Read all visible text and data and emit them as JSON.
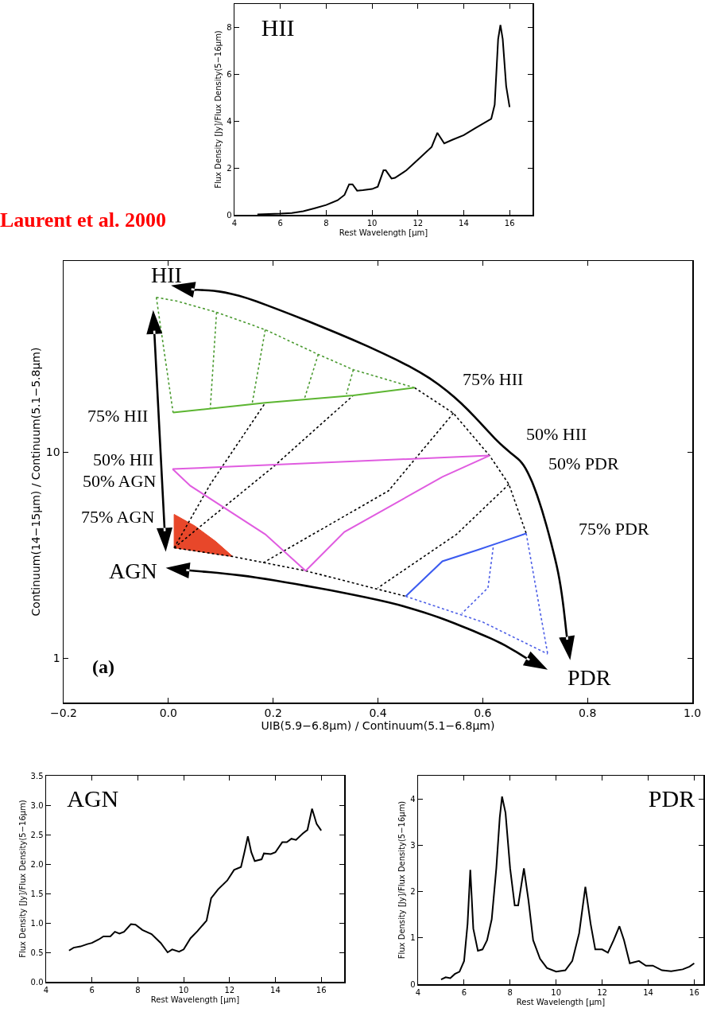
{
  "chart_data": [
    {
      "type": "line",
      "title": "HII",
      "xlabel": "Rest Wavelength [µm]",
      "ylabel": "Flux Density [Jy]/Flux Density(5−16µm)",
      "color": "#000000",
      "xlim": [
        4,
        17
      ],
      "ylim": [
        0,
        9
      ],
      "xticks": [
        4,
        6,
        8,
        10,
        12,
        14,
        16
      ],
      "yticks": [
        0,
        2,
        4,
        6,
        8
      ],
      "x": [
        5,
        6,
        6.5,
        7,
        7.5,
        8,
        8.5,
        8.8,
        9.0,
        9.15,
        9.35,
        9.6,
        10,
        10.25,
        10.5,
        10.6,
        10.85,
        11,
        11.5,
        12,
        12.6,
        12.85,
        13.15,
        13.5,
        14,
        14.5,
        15.2,
        15.35,
        15.5,
        15.6,
        15.7,
        15.85,
        16.0
      ],
      "values": [
        0.02,
        0.05,
        0.08,
        0.15,
        0.28,
        0.42,
        0.62,
        0.85,
        1.3,
        1.3,
        1.03,
        1.05,
        1.1,
        1.2,
        1.9,
        1.9,
        1.55,
        1.58,
        1.9,
        2.35,
        2.9,
        3.5,
        3.05,
        3.2,
        3.4,
        3.7,
        4.1,
        4.7,
        7.5,
        8.1,
        7.5,
        5.5,
        4.6
      ]
    },
    {
      "type": "line",
      "xlabel": "UIB(5.9−6.8µm) / Continuum(5.1−6.8µm)",
      "ylabel": "Continuum(14−15µm) / Continuum(5.1−5.8µm)",
      "log": "y",
      "xlim": [
        -0.2,
        1.0
      ],
      "ylim": [
        0.61,
        85
      ],
      "xticks": [
        {
          "value": -0.2,
          "label": "−0.2"
        },
        {
          "value": 0,
          "label": "0.0"
        },
        0.2,
        0.4,
        0.6,
        0.8,
        {
          "value": 1,
          "label": "1.0"
        }
      ],
      "yticks": [
        1,
        10
      ],
      "annotations": [
        "Laurent et al. 2000",
        "HII",
        "AGN",
        "PDR",
        "75% HII",
        "50% HII",
        "50% AGN",
        "75% AGN",
        "75% HII",
        "50% HII",
        "50% PDR",
        "75% PDR",
        "(a)"
      ],
      "series": [
        {
          "type": "area",
          "color": "#e8472a",
          "x": [
            0.011,
            0.05,
            0.09,
            0.123,
            0.011,
            0.011
          ],
          "values": [
            5.0,
            4.4,
            3.7,
            3.12,
            3.44,
            5.0
          ]
        },
        {
          "line_style": "dotted",
          "color": "#4a9a30",
          "x": [
            -0.023,
            0.009
          ],
          "values": [
            56.6,
            15.6
          ]
        },
        {
          "line_style": "dotted",
          "color": "#4a9a30",
          "x": [
            0.092,
            0.08
          ],
          "values": [
            47.9,
            16.4
          ]
        },
        {
          "line_style": "dotted",
          "color": "#4a9a30",
          "x": [
            0.185,
            0.16
          ],
          "values": [
            39.4,
            17.3
          ]
        },
        {
          "line_style": "dotted",
          "color": "#4a9a30",
          "x": [
            0.286,
            0.26
          ],
          "values": [
            29.9,
            18.3
          ]
        },
        {
          "line_style": "dotted",
          "color": "#4a9a30",
          "x": [
            0.353,
            0.34
          ],
          "values": [
            25.2,
            19.2
          ]
        },
        {
          "line_style": "dotted",
          "color": "#4a9a30",
          "x": [
            -0.023,
            0.017,
            0.092,
            0.185,
            0.286,
            0.353,
            0.47
          ],
          "values": [
            56.6,
            54.2,
            47.9,
            39.4,
            29.9,
            25.2,
            20.6
          ]
        },
        {
          "line_style": "dotted",
          "color": "#000000",
          "x": [
            0.011,
            0.08,
            0.185
          ],
          "values": [
            3.44,
            7.0,
            17.4
          ]
        },
        {
          "line_style": "dotted",
          "color": "#000000",
          "x": [
            0.011,
            0.2,
            0.353
          ],
          "values": [
            3.44,
            8.5,
            18.9
          ]
        },
        {
          "line_style": "dotted",
          "color": "#000000",
          "x": [
            0.544,
            0.42,
            0.18
          ],
          "values": [
            15.5,
            6.5,
            2.9
          ]
        },
        {
          "line_style": "dotted",
          "color": "#000000",
          "x": [
            0.65,
            0.55,
            0.4
          ],
          "values": [
            7.0,
            4.0,
            2.2
          ]
        },
        {
          "line_style": "dotted",
          "color": "#000000",
          "x": [
            0.47,
            0.544,
            0.613,
            0.65,
            0.683
          ],
          "values": [
            20.6,
            15.5,
            9.65,
            7.0,
            4.04
          ]
        },
        {
          "line_style": "dotted",
          "color": "#000000",
          "x": [
            0.011,
            0.123,
            0.262,
            0.453
          ],
          "values": [
            3.44,
            3.12,
            2.66,
            2.0
          ]
        },
        {
          "line_style": "dotted",
          "color": "#4b5de6",
          "x": [
            0.453,
            0.6,
            0.724
          ],
          "values": [
            2.0,
            1.5,
            1.05
          ]
        },
        {
          "line_style": "dotted",
          "color": "#4b5de6",
          "x": [
            0.683,
            0.724
          ],
          "values": [
            4.04,
            1.05
          ]
        },
        {
          "line_style": "dotted",
          "color": "#4b5de6",
          "x": [
            0.62,
            0.61,
            0.56
          ],
          "values": [
            3.45,
            2.2,
            1.65
          ]
        },
        {
          "line_style": "solid",
          "color": "#5cb531",
          "x": [
            0.009,
            0.185,
            0.353,
            0.47
          ],
          "values": [
            15.6,
            17.4,
            18.9,
            20.6
          ]
        },
        {
          "line_style": "solid",
          "color": "#e05ce0",
          "x": [
            0.008,
            0.613
          ],
          "values": [
            8.3,
            9.65
          ]
        },
        {
          "line_style": "solid",
          "color": "#e05ce0",
          "x": [
            0.262,
            0.336,
            0.523,
            0.613
          ],
          "values": [
            2.66,
            4.11,
            7.6,
            9.65
          ]
        },
        {
          "line_style": "solid",
          "color": "#e05ce0",
          "x": [
            0.008,
            0.042,
            0.185,
            0.262
          ],
          "values": [
            8.3,
            6.88,
            4.0,
            2.66
          ]
        },
        {
          "line_style": "solid",
          "color": "#3b5bf0",
          "x": [
            0.453,
            0.523,
            0.589,
            0.639,
            0.683
          ],
          "values": [
            2.0,
            2.96,
            3.35,
            3.7,
            4.04
          ]
        }
      ]
    },
    {
      "type": "line",
      "title": "AGN",
      "xlabel": "Rest Wavelength [µm]",
      "ylabel": "Flux Density [Jy]/Flux Density(5−16µm)",
      "color": "#000000",
      "xlim": [
        4,
        17
      ],
      "ylim": [
        0,
        3.5
      ],
      "xticks": [
        4,
        6,
        8,
        10,
        12,
        14,
        16
      ],
      "yticks": [
        {
          "value": 0,
          "label": "0.0"
        },
        0.5,
        {
          "value": 1,
          "label": "1.0"
        },
        1.5,
        {
          "value": 2,
          "label": "2.0"
        },
        2.5,
        {
          "value": 3,
          "label": "3.0"
        },
        3.5
      ],
      "x": [
        5.0,
        5.2,
        5.5,
        5.8,
        6,
        6.3,
        6.5,
        6.8,
        7.0,
        7.2,
        7.4,
        7.7,
        7.9,
        8.2,
        8.6,
        9.0,
        9.3,
        9.5,
        9.8,
        10,
        10.3,
        10.6,
        11.0,
        11.2,
        11.5,
        11.9,
        12.2,
        12.5,
        12.65,
        12.8,
        12.95,
        13.1,
        13.4,
        13.5,
        13.8,
        14.0,
        14.3,
        14.5,
        14.7,
        14.9,
        15.2,
        15.4,
        15.6,
        15.8,
        16.0
      ],
      "values": [
        0.53,
        0.58,
        0.6,
        0.64,
        0.66,
        0.72,
        0.77,
        0.77,
        0.85,
        0.82,
        0.85,
        0.98,
        0.97,
        0.88,
        0.81,
        0.66,
        0.5,
        0.55,
        0.51,
        0.55,
        0.74,
        0.86,
        1.04,
        1.42,
        1.57,
        1.72,
        1.9,
        1.95,
        2.2,
        2.47,
        2.2,
        2.05,
        2.08,
        2.18,
        2.17,
        2.2,
        2.37,
        2.37,
        2.43,
        2.41,
        2.52,
        2.58,
        2.94,
        2.68,
        2.57
      ]
    },
    {
      "type": "line",
      "title": "PDR",
      "xlabel": "Rest Wavelength [µm]",
      "ylabel": "Flux Density [Jy]/Flux Density(5−16µm)",
      "color": "#000000",
      "xlim": [
        4,
        16.4
      ],
      "ylim": [
        0,
        4.5
      ],
      "xticks": [
        4,
        6,
        8,
        10,
        12,
        14,
        16
      ],
      "yticks": [
        0,
        1,
        2,
        3,
        4
      ],
      "x": [
        5.0,
        5.2,
        5.4,
        5.6,
        5.8,
        6.0,
        6.15,
        6.27,
        6.4,
        6.6,
        6.8,
        7.0,
        7.2,
        7.4,
        7.55,
        7.65,
        7.8,
        8.0,
        8.2,
        8.35,
        8.6,
        8.8,
        9.0,
        9.3,
        9.6,
        10.0,
        10.4,
        10.7,
        11.0,
        11.27,
        11.5,
        11.7,
        12.0,
        12.25,
        12.5,
        12.75,
        12.95,
        13.2,
        13.6,
        13.9,
        14.2,
        14.6,
        15.0,
        15.5,
        15.8,
        16.0
      ],
      "values": [
        0.1,
        0.15,
        0.13,
        0.22,
        0.27,
        0.5,
        1.3,
        2.47,
        1.2,
        0.72,
        0.75,
        0.95,
        1.4,
        2.5,
        3.6,
        4.05,
        3.7,
        2.5,
        1.7,
        1.7,
        2.5,
        1.8,
        0.95,
        0.55,
        0.35,
        0.27,
        0.3,
        0.5,
        1.1,
        2.1,
        1.3,
        0.75,
        0.75,
        0.68,
        0.95,
        1.25,
        0.95,
        0.45,
        0.5,
        0.4,
        0.4,
        0.3,
        0.28,
        0.32,
        0.38,
        0.45
      ]
    }
  ]
}
